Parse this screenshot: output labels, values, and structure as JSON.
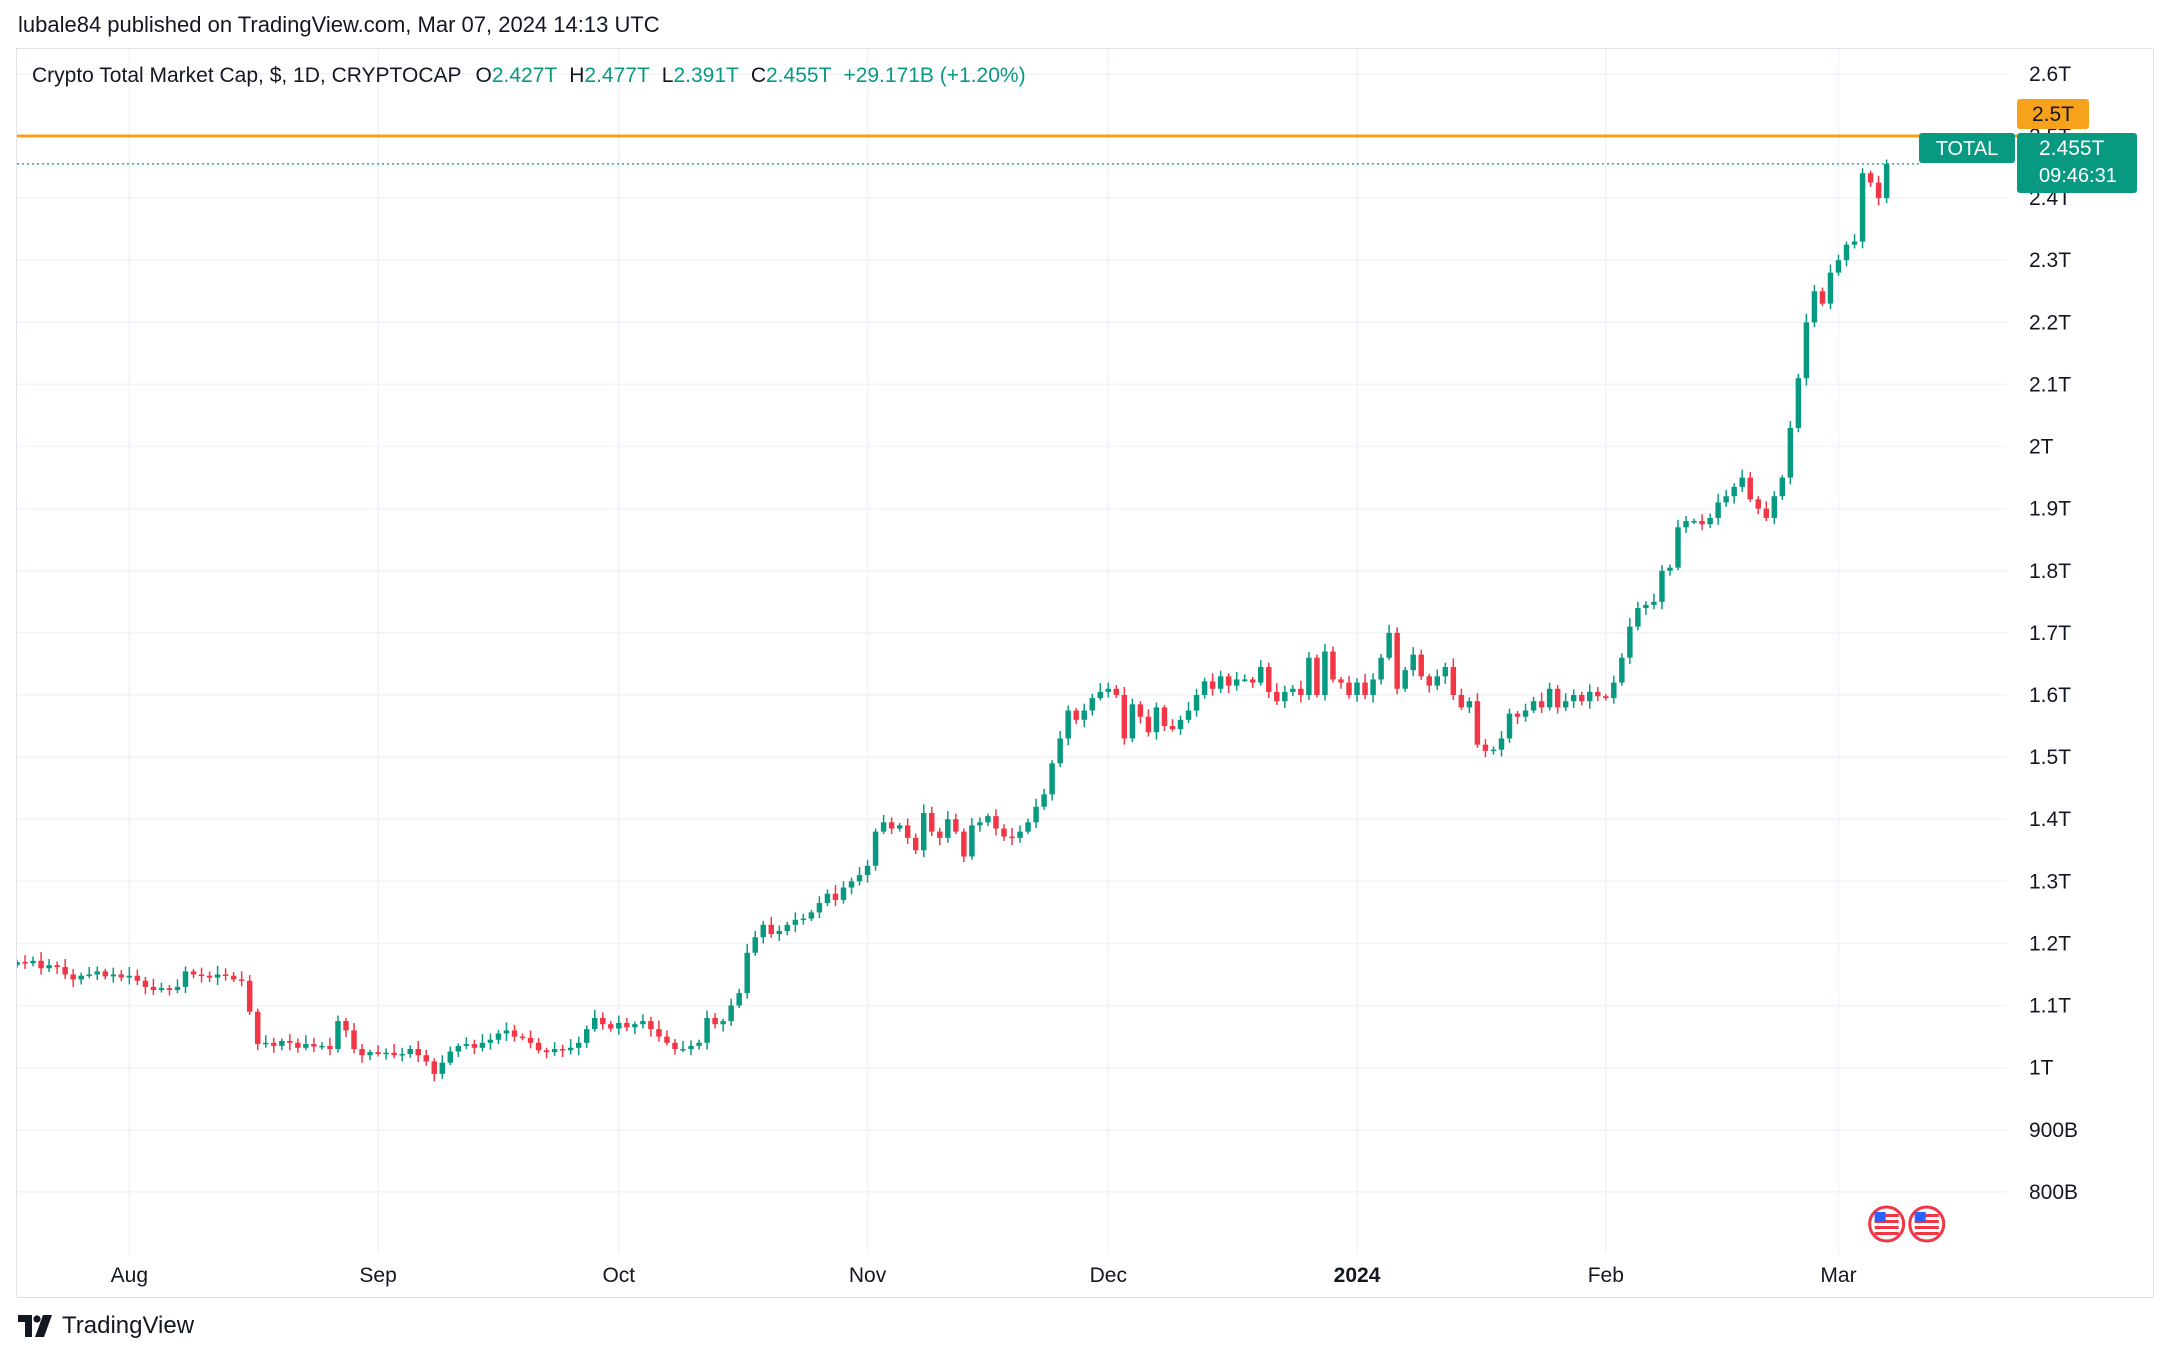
{
  "header": {
    "published_by": "lubale84 published on TradingView.com, Mar 07, 2024 14:13 UTC"
  },
  "legend": {
    "symbol_name": "Crypto Total Market Cap, $, 1D, CRYPTOCAP",
    "open_label": "O",
    "open_value": "2.427T",
    "high_label": "H",
    "high_value": "2.477T",
    "low_label": "L",
    "low_value": "2.391T",
    "close_label": "C",
    "close_value": "2.455T",
    "change": "+29.171B (+1.20%)"
  },
  "price_tags": {
    "level_value": "2.5T",
    "symbol_tag": "TOTAL",
    "last_price": "2.455T",
    "countdown": "09:46:31"
  },
  "footer": {
    "brand": "TradingView"
  },
  "colors": {
    "up": "#089981",
    "down": "#f23645",
    "level_line": "#f7a21b",
    "grid": "#f0f3fa",
    "text": "#131722"
  },
  "icons": [
    "us-flag-event-icon",
    "us-flag-event-icon",
    "tradingview-logo-icon"
  ],
  "chart_data": {
    "type": "candlestick",
    "title": "Crypto Total Market Cap, $, 1D, CRYPTOCAP",
    "y_unit": "USD (T = trillion, B = billion)",
    "ylim": [
      700,
      2640
    ],
    "y_ticks": [
      {
        "label": "2.6T",
        "value": 2600
      },
      {
        "label": "2.5T",
        "value": 2500
      },
      {
        "label": "2.4T",
        "value": 2400
      },
      {
        "label": "2.3T",
        "value": 2300
      },
      {
        "label": "2.2T",
        "value": 2200
      },
      {
        "label": "2.1T",
        "value": 2100
      },
      {
        "label": "2T",
        "value": 2000
      },
      {
        "label": "1.9T",
        "value": 1900
      },
      {
        "label": "1.8T",
        "value": 1800
      },
      {
        "label": "1.7T",
        "value": 1700
      },
      {
        "label": "1.6T",
        "value": 1600
      },
      {
        "label": "1.5T",
        "value": 1500
      },
      {
        "label": "1.4T",
        "value": 1400
      },
      {
        "label": "1.3T",
        "value": 1300
      },
      {
        "label": "1.2T",
        "value": 1200
      },
      {
        "label": "1.1T",
        "value": 1100
      },
      {
        "label": "1T",
        "value": 1000
      },
      {
        "label": "900B",
        "value": 900
      },
      {
        "label": "800B",
        "value": 800
      }
    ],
    "x_ticks": [
      {
        "label": "Aug",
        "date": "2023-08-01",
        "bold": false
      },
      {
        "label": "Sep",
        "date": "2023-09-01",
        "bold": false
      },
      {
        "label": "Oct",
        "date": "2023-10-01",
        "bold": false
      },
      {
        "label": "Nov",
        "date": "2023-11-01",
        "bold": false
      },
      {
        "label": "Dec",
        "date": "2023-12-01",
        "bold": false
      },
      {
        "label": "2024",
        "date": "2024-01-01",
        "bold": true
      },
      {
        "label": "Feb",
        "date": "2024-02-01",
        "bold": false
      },
      {
        "label": "Mar",
        "date": "2024-03-01",
        "bold": false
      }
    ],
    "x_range": [
      "2023-07-18",
      "2024-03-22"
    ],
    "first_date": "2023-07-18",
    "horizontal_level": 2500,
    "last_price": 2455,
    "events": [
      {
        "date": "2024-03-07"
      },
      {
        "date": "2024-03-12"
      }
    ],
    "unit_note": "values in billions USD",
    "closes": [
      1170,
      1168,
      1172,
      1160,
      1165,
      1162,
      1150,
      1142,
      1148,
      1150,
      1155,
      1147,
      1150,
      1145,
      1148,
      1140,
      1130,
      1125,
      1128,
      1125,
      1130,
      1155,
      1150,
      1148,
      1145,
      1150,
      1148,
      1142,
      1140,
      1090,
      1038,
      1040,
      1035,
      1043,
      1040,
      1032,
      1038,
      1034,
      1035,
      1030,
      1075,
      1060,
      1030,
      1020,
      1025,
      1022,
      1024,
      1020,
      1022,
      1030,
      1020,
      1010,
      990,
      1008,
      1026,
      1035,
      1038,
      1032,
      1040,
      1045,
      1055,
      1060,
      1050,
      1048,
      1040,
      1028,
      1025,
      1030,
      1028,
      1032,
      1040,
      1062,
      1080,
      1070,
      1063,
      1072,
      1065,
      1070,
      1075,
      1062,
      1050,
      1040,
      1030,
      1030,
      1035,
      1040,
      1080,
      1070,
      1075,
      1100,
      1120,
      1185,
      1210,
      1230,
      1215,
      1220,
      1230,
      1238,
      1240,
      1250,
      1265,
      1280,
      1270,
      1290,
      1300,
      1310,
      1325,
      1380,
      1395,
      1385,
      1390,
      1370,
      1350,
      1410,
      1380,
      1370,
      1400,
      1380,
      1340,
      1390,
      1395,
      1405,
      1385,
      1372,
      1370,
      1380,
      1395,
      1420,
      1440,
      1490,
      1530,
      1575,
      1560,
      1575,
      1595,
      1605,
      1610,
      1600,
      1530,
      1585,
      1565,
      1540,
      1580,
      1550,
      1545,
      1560,
      1575,
      1600,
      1622,
      1610,
      1630,
      1615,
      1625,
      1625,
      1620,
      1645,
      1605,
      1590,
      1605,
      1610,
      1600,
      1660,
      1600,
      1670,
      1625,
      1620,
      1600,
      1620,
      1600,
      1625,
      1660,
      1700,
      1610,
      1640,
      1665,
      1630,
      1615,
      1630,
      1645,
      1600,
      1580,
      1590,
      1520,
      1510,
      1512,
      1530,
      1570,
      1565,
      1575,
      1590,
      1580,
      1610,
      1580,
      1590,
      1600,
      1590,
      1605,
      1598,
      1595,
      1620,
      1660,
      1710,
      1740,
      1745,
      1750,
      1800,
      1805,
      1870,
      1880,
      1880,
      1875,
      1885,
      1910,
      1920,
      1935,
      1950,
      1915,
      1900,
      1885,
      1920,
      1950,
      2030,
      2110,
      2200,
      2250,
      2230,
      2280,
      2300,
      2325,
      2330,
      2440,
      2425,
      2400,
      2455
    ]
  }
}
